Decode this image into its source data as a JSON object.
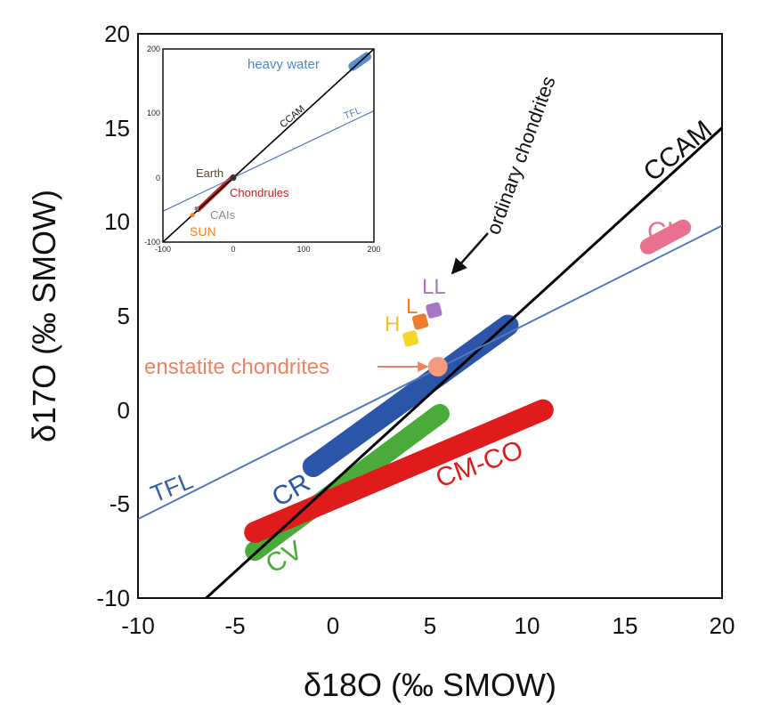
{
  "chart_data": [
    {
      "type": "line",
      "xlabel": "δ18O (‰ SMOW)",
      "ylabel": "δ17O (‰ SMOW)",
      "xlim": [
        -10,
        20
      ],
      "ylim": [
        -10,
        20
      ],
      "x_ticks": [
        "-10",
        "-5",
        "0",
        "5",
        "10",
        "15",
        "20"
      ],
      "y_ticks": [
        "-10",
        "-5",
        "0",
        "5",
        "10",
        "15",
        "20"
      ],
      "grid": false,
      "lines": [
        {
          "label": "CCAM",
          "color": "#000000",
          "points": [
            [
              -6.5,
              -10
            ],
            [
              20,
              15
            ]
          ]
        },
        {
          "label": "TFL",
          "color": "#5577bb",
          "points": [
            [
              -10,
              -5.8
            ],
            [
              20,
              9.8
            ]
          ]
        }
      ],
      "bands": [
        {
          "label": "CR",
          "color": "#2b55a8",
          "points": [
            [
              -1,
              -3
            ],
            [
              9,
              4.5
            ]
          ]
        },
        {
          "label": "CV",
          "color": "#4aaa3a",
          "points": [
            [
              -4,
              -7.5
            ],
            [
              5.5,
              -0.2
            ]
          ]
        },
        {
          "label": "CM-CO",
          "color": "#e01b1b",
          "points": [
            [
              -4,
              -6.5
            ],
            [
              10.8,
              0
            ]
          ]
        },
        {
          "label": "CI",
          "color": "#e8718f",
          "points": [
            [
              16.2,
              8.7
            ],
            [
              18,
              9.7
            ]
          ]
        }
      ],
      "points": [
        {
          "label": "H",
          "x": 4,
          "y": 3.8,
          "color": "#f5d72a",
          "label_color": "#f0c419"
        },
        {
          "label": "L",
          "x": 4.5,
          "y": 4.7,
          "color": "#f07c28",
          "label_color": "#f07c28"
        },
        {
          "label": "LL",
          "x": 5.2,
          "y": 5.3,
          "color": "#a777c6",
          "label_color": "#a777c6"
        },
        {
          "label": "enstatite chondrites",
          "x": 5.4,
          "y": 2.3,
          "color": "#f59a80",
          "label_color": "#f08060"
        }
      ],
      "annotations": [
        {
          "text": "ordinary chondrites",
          "color": "#111111"
        }
      ]
    },
    {
      "type": "line",
      "inset": true,
      "xlim": [
        -100,
        200
      ],
      "ylim": [
        -100,
        200
      ],
      "x_ticks": [
        "-100",
        "0",
        "100",
        "200"
      ],
      "y_ticks": [
        "-100",
        "0",
        "100",
        "200"
      ],
      "lines": [
        {
          "label": "CCAM",
          "color": "#000000",
          "points": [
            [
              -100,
              -100
            ],
            [
              200,
              200
            ]
          ]
        },
        {
          "label": "TFL",
          "color": "#5577bb",
          "points": [
            [
              -100,
              -52
            ],
            [
              200,
              104
            ]
          ]
        }
      ],
      "bands": [
        {
          "label": "heavy water",
          "color": "#5a8fd0",
          "points": [
            [
              170,
              173
            ],
            [
              190,
              188
            ]
          ]
        },
        {
          "label": "Chondrules",
          "color": "#cc2020",
          "points": [
            [
              -50,
              -50
            ],
            [
              0,
              2
            ]
          ]
        }
      ],
      "points": [
        {
          "label": "Earth",
          "x": 0,
          "y": 0,
          "color": "#333333",
          "label_color": "#5a4630"
        },
        {
          "label": "CAIs",
          "x": -52,
          "y": -48,
          "color": "#888888",
          "label_color": "#8a8a8a"
        },
        {
          "label": "SUN",
          "x": -58,
          "y": -58,
          "color": "#f08020",
          "label_color": "#f08020"
        }
      ]
    }
  ]
}
